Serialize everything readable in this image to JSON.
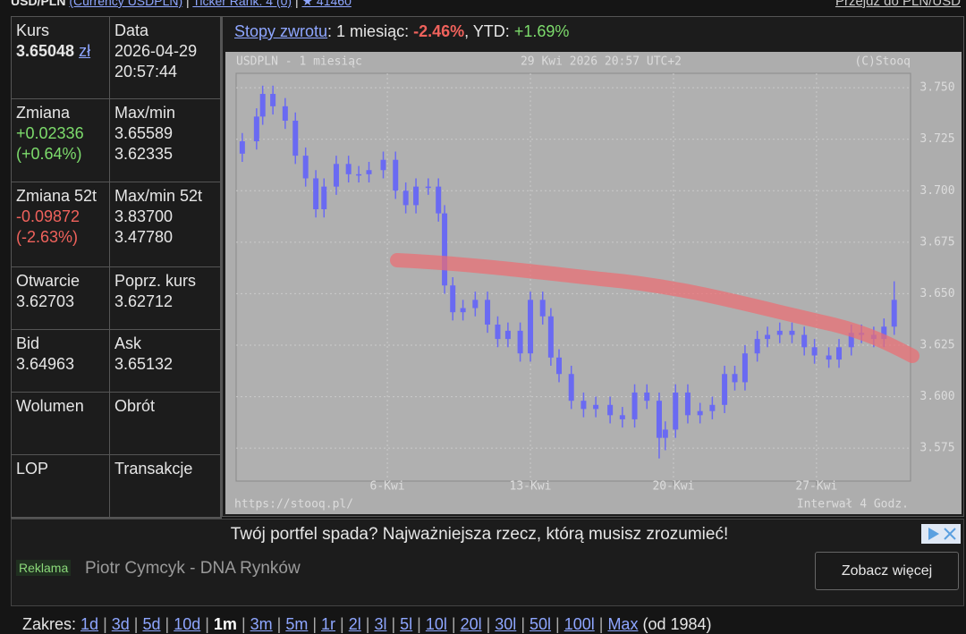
{
  "header": {
    "symbol": "USD/PLN",
    "category": "(Currency USDPLN)",
    "separator": "|",
    "rank": "Ticker Rank: 4 (0)",
    "star": "★ 41460",
    "switch": "Przejdź do PLN/USD"
  },
  "quote_table": {
    "rows": [
      [
        {
          "label": "Kurs",
          "values": [
            "3.65048"
          ],
          "unit": "zł",
          "tone": "bold"
        },
        {
          "label": "Data",
          "values": [
            "2026-04-29",
            "20:57:44"
          ]
        }
      ],
      [
        {
          "label": "Zmiana",
          "values": [
            "+0.02336",
            "(+0.64%)"
          ],
          "tone": "up"
        },
        {
          "label": "Max/min",
          "values": [
            "3.65589",
            "3.62335"
          ]
        }
      ],
      [
        {
          "label": "Zmiana 52t",
          "values": [
            "-0.09872",
            "(-2.63%)"
          ],
          "tone": "down"
        },
        {
          "label": "Max/min 52t",
          "values": [
            "3.83700",
            "3.47780"
          ]
        }
      ],
      [
        {
          "label": "Otwarcie",
          "values": [
            "3.62703"
          ]
        },
        {
          "label": "Poprz. kurs",
          "values": [
            "3.62712"
          ]
        }
      ],
      [
        {
          "label": "Bid",
          "values": [
            "3.64963"
          ]
        },
        {
          "label": "Ask",
          "values": [
            "3.65132"
          ]
        }
      ],
      [
        {
          "label": "Wolumen",
          "values": []
        },
        {
          "label": "Obrót",
          "values": []
        }
      ],
      [
        {
          "label": "LOP",
          "values": []
        },
        {
          "label": "Transakcje",
          "values": []
        }
      ]
    ]
  },
  "returns": {
    "link": "Stopy zwrotu",
    "month_label": ": 1 miesiąc: ",
    "month": "-2.46%",
    "ytd_label": ", YTD: ",
    "ytd": "+1.69%"
  },
  "chart_data": {
    "type": "candlestick",
    "title": "USDPLN - 1 miesiąc",
    "subtitle": "29 Kwi 2026 20:57 UTC+2",
    "annotations": [
      "(C)Stooq",
      "https://stooq.pl/",
      "Interwał 4 Godz."
    ],
    "color": "#6a6af2",
    "grid": true,
    "xlim": [
      -1.4,
      31.6
    ],
    "xticks": [
      {
        "value": 6,
        "label": "6-Kwi"
      },
      {
        "value": 13,
        "label": "13-Kwi"
      },
      {
        "value": 20,
        "label": "20-Kwi"
      },
      {
        "value": 27,
        "label": "27-Kwi"
      }
    ],
    "ylim": [
      3.559,
      3.757
    ],
    "yticks": [
      {
        "value": 3.575,
        "label": "3.575"
      },
      {
        "value": 3.6,
        "label": "3.600"
      },
      {
        "value": 3.625,
        "label": "3.625"
      },
      {
        "value": 3.65,
        "label": "3.650"
      },
      {
        "value": 3.675,
        "label": "3.675"
      },
      {
        "value": 3.7,
        "label": "3.700"
      },
      {
        "value": 3.725,
        "label": "3.725"
      },
      {
        "value": 3.75,
        "label": "3.750"
      }
    ],
    "x": [
      -1.1,
      -0.4,
      -0.1,
      0.4,
      1.0,
      1.5,
      2.0,
      2.5,
      2.9,
      3.5,
      4.1,
      4.6,
      5.1,
      5.8,
      6.4,
      6.9,
      7.4,
      8.0,
      8.5,
      8.8,
      9.2,
      9.7,
      10.3,
      10.9,
      11.4,
      11.9,
      12.5,
      13.0,
      13.6,
      14.0,
      14.4,
      15.0,
      15.6,
      16.2,
      16.9,
      17.5,
      18.1,
      18.7,
      19.3,
      19.6,
      20.1,
      20.7,
      21.3,
      21.9,
      22.5,
      23.0,
      23.5,
      24.1,
      24.6,
      25.2,
      25.8,
      26.4,
      26.9,
      27.6,
      28.1,
      28.7,
      29.2,
      29.8,
      30.3,
      30.8
    ],
    "open": [
      3.718,
      3.724,
      3.736,
      3.747,
      3.741,
      3.734,
      3.717,
      3.706,
      3.691,
      3.702,
      3.713,
      3.708,
      3.708,
      3.71,
      3.715,
      3.7,
      3.693,
      3.702,
      3.702,
      3.689,
      3.654,
      3.641,
      3.643,
      3.647,
      3.635,
      3.628,
      3.632,
      3.621,
      3.647,
      3.639,
      3.619,
      3.611,
      3.598,
      3.594,
      3.596,
      3.591,
      3.589,
      3.602,
      3.598,
      3.58,
      3.584,
      3.602,
      3.591,
      3.593,
      3.596,
      3.611,
      3.607,
      3.621,
      3.628,
      3.63,
      3.632,
      3.63,
      3.624,
      3.62,
      3.618,
      3.624,
      3.631,
      3.63,
      3.628,
      3.634
    ],
    "high": [
      3.728,
      3.74,
      3.751,
      3.751,
      3.745,
      3.738,
      3.721,
      3.71,
      3.706,
      3.717,
      3.717,
      3.712,
      3.714,
      3.719,
      3.719,
      3.704,
      3.706,
      3.706,
      3.706,
      3.693,
      3.658,
      3.647,
      3.651,
      3.651,
      3.639,
      3.636,
      3.636,
      3.651,
      3.651,
      3.643,
      3.623,
      3.615,
      3.602,
      3.6,
      3.6,
      3.595,
      3.606,
      3.606,
      3.602,
      3.588,
      3.606,
      3.606,
      3.597,
      3.6,
      3.615,
      3.615,
      3.625,
      3.632,
      3.634,
      3.636,
      3.636,
      3.634,
      3.628,
      3.624,
      3.628,
      3.635,
      3.635,
      3.634,
      3.638,
      3.656
    ],
    "low": [
      3.714,
      3.72,
      3.732,
      3.737,
      3.73,
      3.713,
      3.702,
      3.687,
      3.687,
      3.698,
      3.704,
      3.704,
      3.704,
      3.706,
      3.696,
      3.689,
      3.689,
      3.698,
      3.685,
      3.65,
      3.637,
      3.637,
      3.639,
      3.631,
      3.624,
      3.624,
      3.617,
      3.617,
      3.635,
      3.615,
      3.607,
      3.594,
      3.59,
      3.59,
      3.587,
      3.585,
      3.585,
      3.594,
      3.57,
      3.574,
      3.58,
      3.587,
      3.587,
      3.589,
      3.592,
      3.603,
      3.603,
      3.617,
      3.624,
      3.626,
      3.626,
      3.62,
      3.616,
      3.614,
      3.614,
      3.62,
      3.626,
      3.624,
      3.624,
      3.63
    ],
    "close": [
      3.724,
      3.736,
      3.747,
      3.741,
      3.734,
      3.717,
      3.706,
      3.691,
      3.702,
      3.713,
      3.708,
      3.708,
      3.71,
      3.715,
      3.7,
      3.693,
      3.702,
      3.702,
      3.689,
      3.654,
      3.641,
      3.643,
      3.647,
      3.635,
      3.628,
      3.632,
      3.621,
      3.647,
      3.639,
      3.619,
      3.611,
      3.598,
      3.594,
      3.596,
      3.591,
      3.589,
      3.602,
      3.598,
      3.58,
      3.584,
      3.602,
      3.591,
      3.593,
      3.596,
      3.611,
      3.607,
      3.621,
      3.628,
      3.63,
      3.632,
      3.63,
      3.624,
      3.62,
      3.618,
      3.624,
      3.631,
      3.63,
      3.628,
      3.634,
      3.647
    ]
  },
  "ad": {
    "headline": "Twój portfel spada? Najważniejsza rzecz, którą musisz zrozumieć!",
    "badge": "Reklama",
    "sponsor": "Piotr Cymcyk - DNA Rynków",
    "button": "Zobacz więcej"
  },
  "range": {
    "label": "Zakres:",
    "separator": "|",
    "options": [
      "1d",
      "3d",
      "5d",
      "10d",
      "1m",
      "3m",
      "5m",
      "1r",
      "2l",
      "3l",
      "5l",
      "10l",
      "20l",
      "30l",
      "50l",
      "100l",
      "Max"
    ],
    "active": "1m",
    "since": "(od 1984)"
  }
}
